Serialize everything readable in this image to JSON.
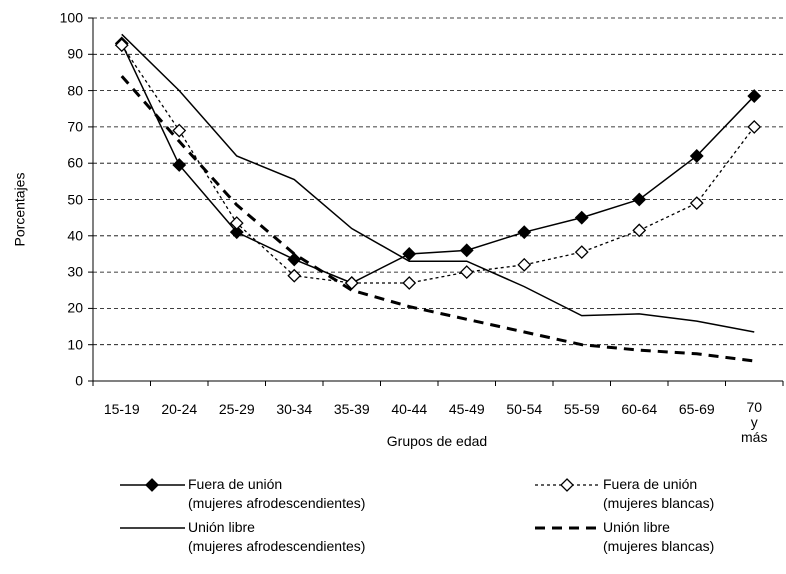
{
  "chart_data": {
    "type": "line",
    "x_label": "Grupos de edad",
    "y_label": "Porcentajes",
    "categories": [
      "15-19",
      "20-24",
      "25-29",
      "30-34",
      "35-39",
      "40-44",
      "45-49",
      "50-54",
      "55-59",
      "60-64",
      "65-69",
      "70\ny más"
    ],
    "ylim": [
      0,
      100
    ],
    "yticks": [
      0,
      10,
      20,
      30,
      40,
      50,
      60,
      70,
      80,
      90,
      100
    ],
    "grid": true,
    "series": [
      {
        "name": "Fuera de unión\n(mujeres afrodescendientes)",
        "color": "#000",
        "dash": "solid",
        "marker": "diamond-filled",
        "values": [
          93,
          59.5,
          41,
          33.5,
          27,
          35,
          36,
          41,
          45,
          50,
          62,
          78.5
        ]
      },
      {
        "name": "Fuera de unión\n(mujeres blancas)",
        "color": "#000",
        "dash": "dotted",
        "marker": "diamond-open",
        "values": [
          92.5,
          69,
          43.5,
          29,
          27,
          27,
          30,
          32,
          35.5,
          41.5,
          49,
          70
        ]
      },
      {
        "name": "Unión libre\n(mujeres afrodescendientes)",
        "color": "#000",
        "dash": "solid",
        "marker": "none",
        "values": [
          95.5,
          80,
          62,
          55.5,
          42,
          33,
          33,
          26,
          18,
          18.5,
          16.5,
          13.5
        ]
      },
      {
        "name": "Unión libre\n(mujeres blancas)",
        "color": "#000",
        "dash": "dashed",
        "marker": "none",
        "values": [
          84,
          66,
          48.5,
          35,
          25,
          20.5,
          17,
          13.5,
          10,
          8.5,
          7.5,
          5.5
        ]
      }
    ]
  }
}
